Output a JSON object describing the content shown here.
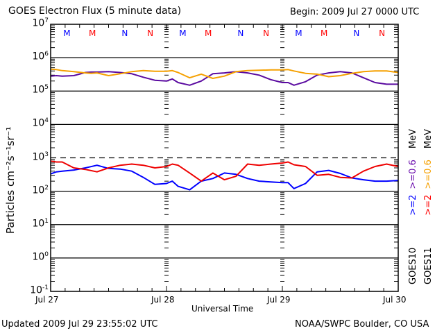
{
  "chart_data": {
    "type": "line",
    "title": "GOES Electron Flux (5 minute data)",
    "subtitle": "Begin: 2009 Jul 27 0000 UTC",
    "xlabel": "Universal Time",
    "ylabel": "Particles cm⁻²s⁻¹sr⁻¹",
    "yscale": "log",
    "ylim": [
      0.1,
      10000000
    ],
    "xlim": [
      0,
      3
    ],
    "x_units": "days since 2009 Jul 27 00:00 UTC",
    "x_tick_labels": [
      "Jul 27",
      "Jul 28",
      "Jul 29",
      "Jul 30"
    ],
    "y_tick_labels": [
      {
        "base": "10",
        "exp": "7"
      },
      {
        "base": "10",
        "exp": "6"
      },
      {
        "base": "10",
        "exp": "5"
      },
      {
        "base": "10",
        "exp": "4"
      },
      {
        "base": "10",
        "exp": "3"
      },
      {
        "base": "10",
        "exp": "2"
      },
      {
        "base": "10",
        "exp": "1"
      },
      {
        "base": "10",
        "exp": "0"
      },
      {
        "base": "10",
        "exp": "-1"
      }
    ],
    "threshold_line": 1000,
    "grid": "horizontal decade lines",
    "local_time_markers": [
      {
        "label": "M",
        "x": 0.14,
        "color": "#0000ff"
      },
      {
        "label": "M",
        "x": 0.36,
        "color": "#ff0000"
      },
      {
        "label": "N",
        "x": 0.64,
        "color": "#0000ff"
      },
      {
        "label": "N",
        "x": 0.86,
        "color": "#ff0000"
      },
      {
        "label": "M",
        "x": 1.14,
        "color": "#0000ff"
      },
      {
        "label": "M",
        "x": 1.36,
        "color": "#ff0000"
      },
      {
        "label": "N",
        "x": 1.64,
        "color": "#0000ff"
      },
      {
        "label": "N",
        "x": 1.86,
        "color": "#ff0000"
      },
      {
        "label": "M",
        "x": 2.14,
        "color": "#0000ff"
      },
      {
        "label": "M",
        "x": 2.36,
        "color": "#ff0000"
      },
      {
        "label": "N",
        "x": 2.64,
        "color": "#0000ff"
      },
      {
        "label": "N",
        "x": 2.86,
        "color": "#ff0000"
      }
    ],
    "legend": {
      "placement": "right",
      "columns": [
        {
          "satellite": "GOES10",
          "entries": [
            {
              "label": ">=2",
              "color": "#0000ff"
            },
            {
              "label": ">=0.6",
              "color": "#6a0dad"
            }
          ],
          "unit": "MeV"
        },
        {
          "satellite": "GOES11",
          "entries": [
            {
              "label": ">=2",
              "color": "#ff0000"
            },
            {
              "label": ">=0.6",
              "color": "#f5a000"
            }
          ],
          "unit": "MeV"
        }
      ]
    },
    "series": [
      {
        "name": "GOES10 >=0.6 MeV",
        "color": "#5a0aa0",
        "x": [
          0,
          0.05,
          0.1,
          0.2,
          0.3,
          0.35,
          0.4,
          0.5,
          0.6,
          0.7,
          0.8,
          0.9,
          1.0,
          1.05,
          1.1,
          1.2,
          1.3,
          1.4,
          1.5,
          1.6,
          1.7,
          1.8,
          1.9,
          2.0,
          2.05,
          2.1,
          2.2,
          2.3,
          2.4,
          2.5,
          2.6,
          2.7,
          2.8,
          2.9,
          3.0
        ],
        "values": [
          280000,
          290000,
          280000,
          290000,
          360000,
          370000,
          370000,
          380000,
          360000,
          330000,
          260000,
          210000,
          200000,
          230000,
          180000,
          150000,
          200000,
          330000,
          350000,
          380000,
          350000,
          300000,
          220000,
          180000,
          180000,
          150000,
          190000,
          300000,
          350000,
          380000,
          350000,
          250000,
          180000,
          160000,
          160000
        ]
      },
      {
        "name": "GOES11 >=0.6 MeV",
        "color": "#f5a000",
        "x": [
          0,
          0.05,
          0.1,
          0.2,
          0.3,
          0.35,
          0.4,
          0.5,
          0.6,
          0.7,
          0.8,
          0.9,
          1.0,
          1.05,
          1.1,
          1.2,
          1.3,
          1.4,
          1.5,
          1.6,
          1.7,
          1.8,
          1.9,
          2.0,
          2.05,
          2.1,
          2.2,
          2.3,
          2.4,
          2.5,
          2.6,
          2.7,
          2.8,
          2.9,
          3.0
        ],
        "values": [
          450000,
          440000,
          410000,
          380000,
          350000,
          340000,
          350000,
          290000,
          330000,
          380000,
          410000,
          390000,
          390000,
          410000,
          360000,
          250000,
          320000,
          240000,
          280000,
          380000,
          410000,
          420000,
          430000,
          430000,
          440000,
          400000,
          340000,
          320000,
          270000,
          290000,
          340000,
          380000,
          400000,
          400000,
          360000
        ]
      },
      {
        "name": "GOES10 >=2 MeV",
        "color": "#0000ff",
        "x": [
          0,
          0.05,
          0.1,
          0.2,
          0.3,
          0.4,
          0.5,
          0.6,
          0.7,
          0.8,
          0.9,
          1.0,
          1.05,
          1.1,
          1.2,
          1.3,
          1.4,
          1.5,
          1.6,
          1.7,
          1.8,
          1.9,
          2.0,
          2.05,
          2.1,
          2.2,
          2.3,
          2.4,
          2.5,
          2.6,
          2.7,
          2.8,
          2.9,
          3.0
        ],
        "values": [
          330,
          380,
          400,
          430,
          500,
          600,
          480,
          460,
          400,
          260,
          160,
          170,
          200,
          140,
          110,
          200,
          240,
          350,
          320,
          240,
          200,
          190,
          180,
          180,
          120,
          170,
          380,
          420,
          340,
          250,
          220,
          200,
          200,
          210
        ]
      },
      {
        "name": "GOES11 >=2 MeV",
        "color": "#ee0000",
        "x": [
          0,
          0.05,
          0.1,
          0.2,
          0.3,
          0.4,
          0.5,
          0.6,
          0.7,
          0.8,
          0.9,
          1.0,
          1.05,
          1.1,
          1.2,
          1.3,
          1.4,
          1.5,
          1.6,
          1.7,
          1.8,
          1.9,
          2.0,
          2.05,
          2.1,
          2.2,
          2.3,
          2.4,
          2.5,
          2.6,
          2.7,
          2.8,
          2.9,
          3.0
        ],
        "values": [
          800,
          750,
          750,
          500,
          450,
          380,
          500,
          600,
          650,
          600,
          500,
          550,
          650,
          600,
          350,
          200,
          350,
          220,
          280,
          650,
          600,
          650,
          700,
          750,
          620,
          550,
          300,
          320,
          260,
          250,
          400,
          550,
          650,
          550
        ]
      }
    ]
  },
  "footer": {
    "updated": "Updated 2009 Jul 29 23:55:02 UTC",
    "source": "NOAA/SWPC Boulder, CO USA"
  }
}
